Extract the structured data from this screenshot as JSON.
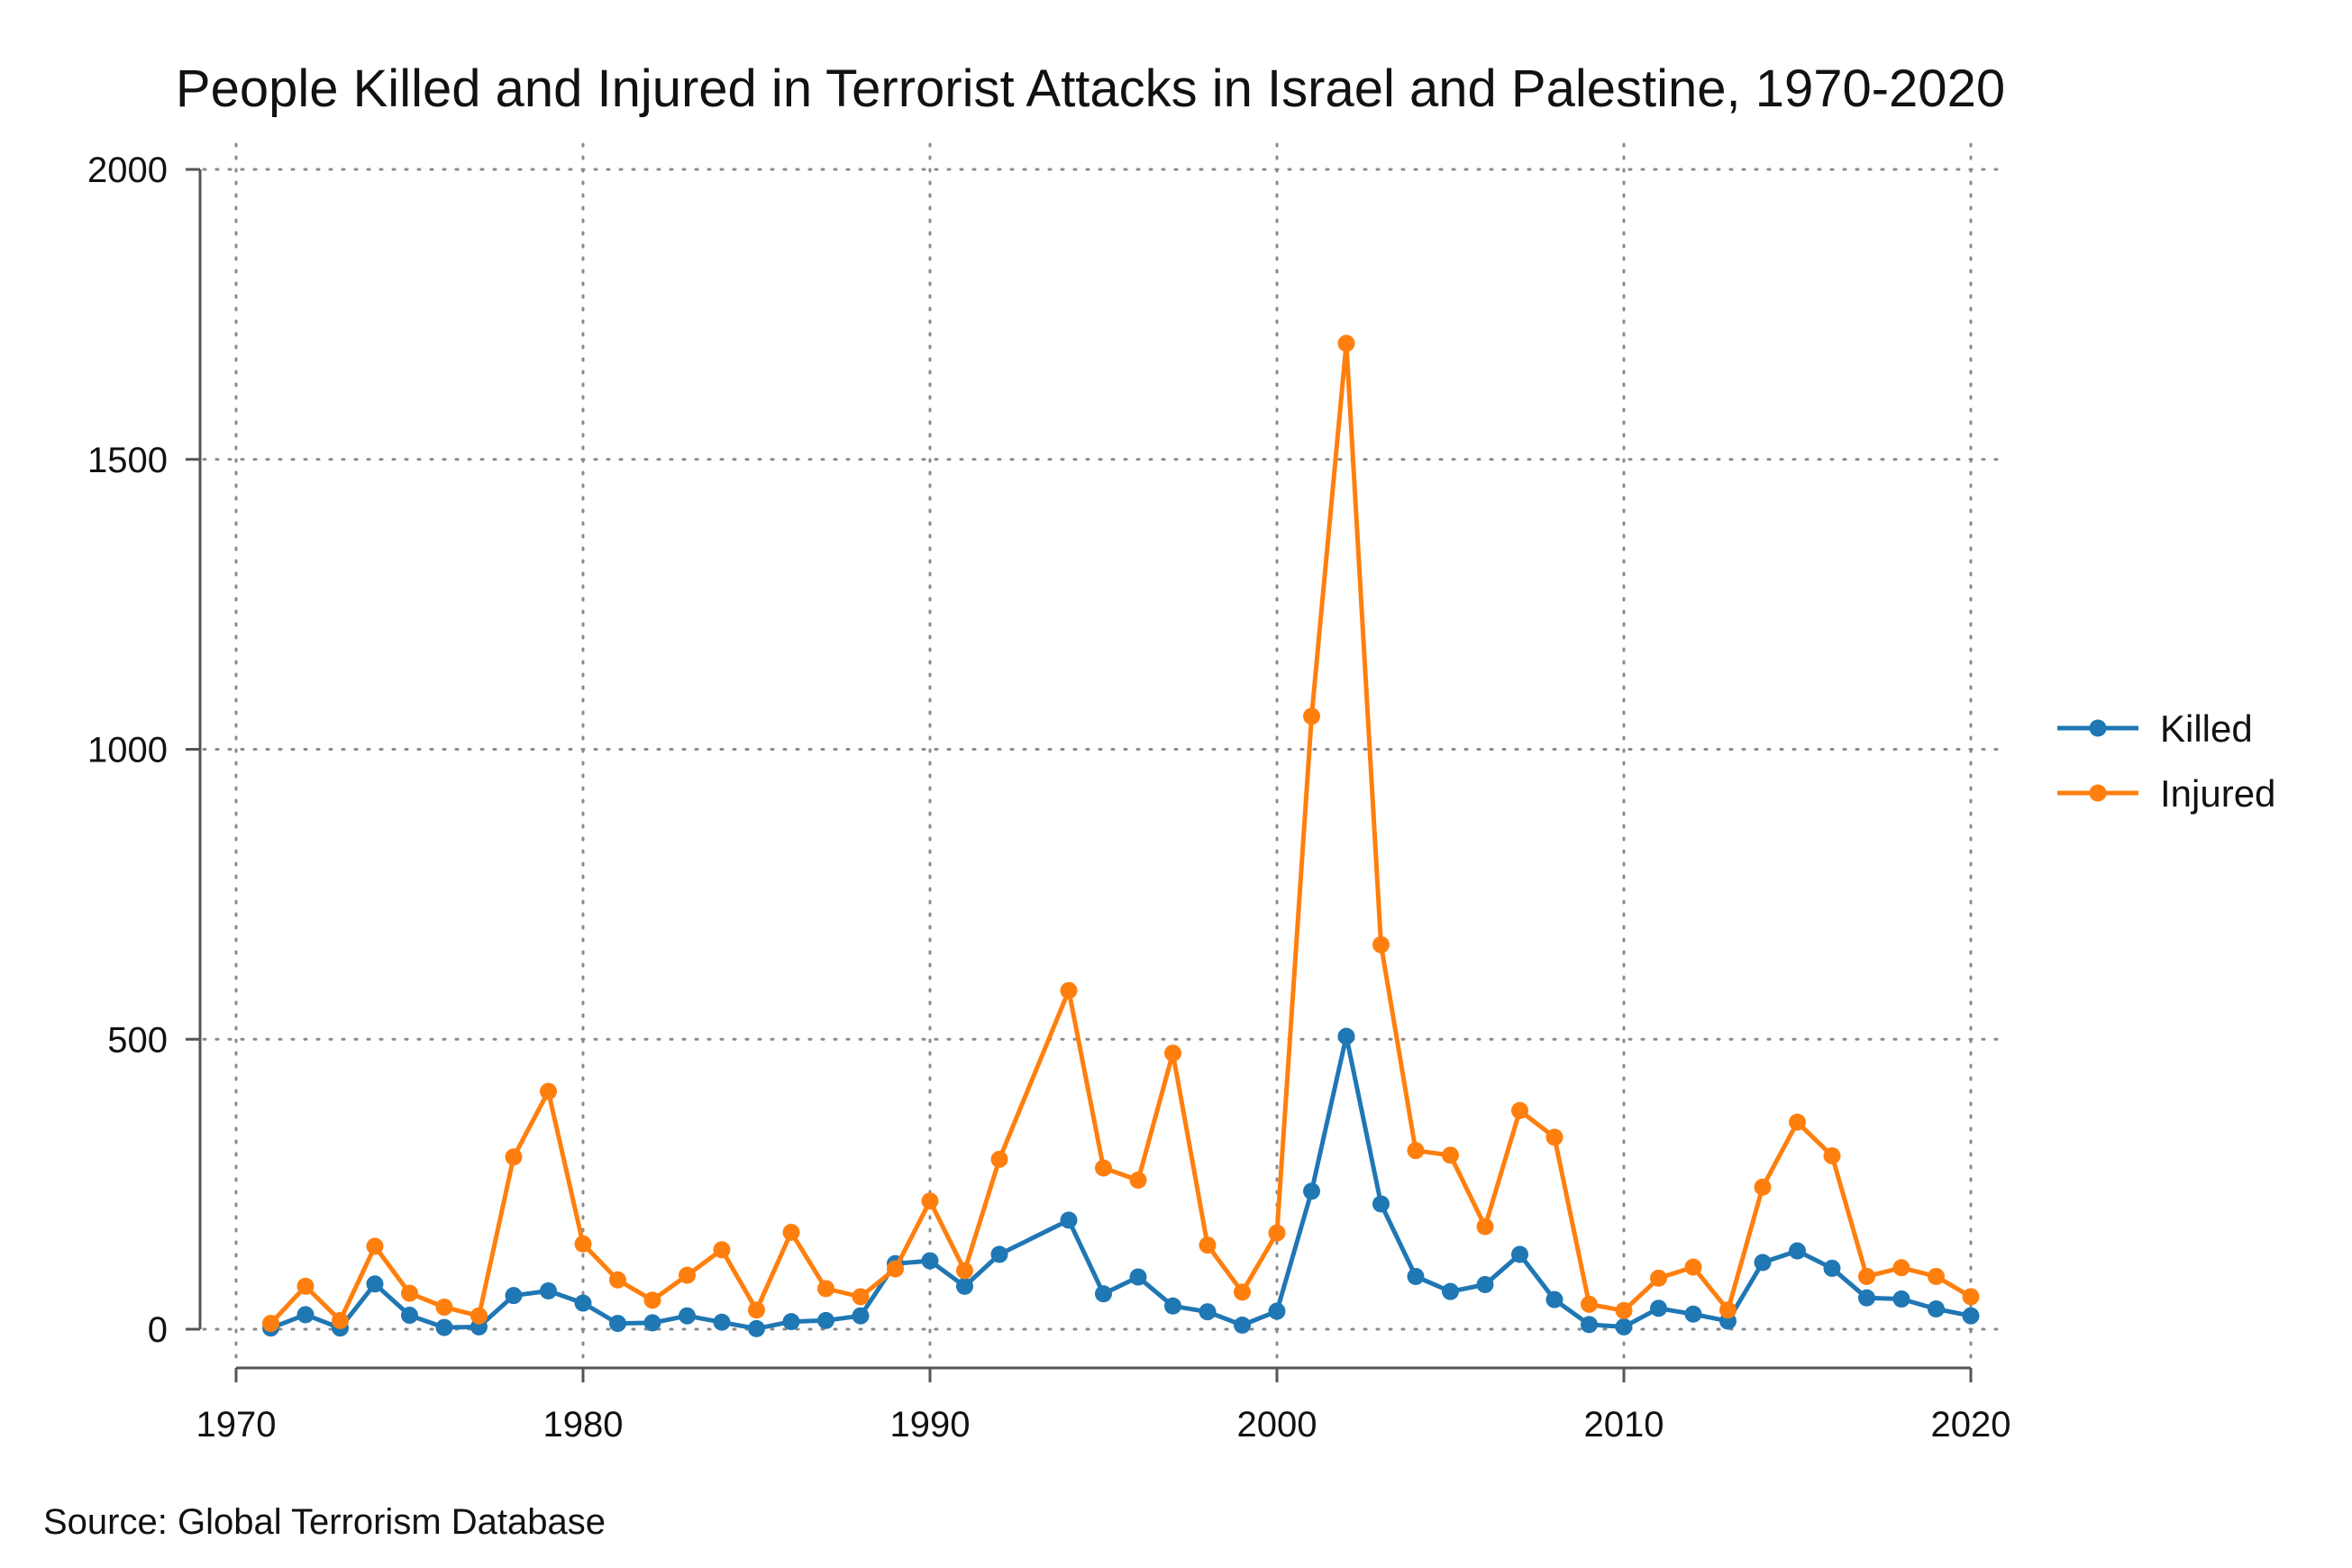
{
  "chart_data": {
    "type": "line",
    "title": "People Killed and Injured in Terrorist Attacks in Israel and Palestine, 1970-2020",
    "xlabel": "",
    "ylabel": "",
    "xlim": [
      1970,
      2020
    ],
    "ylim": [
      0,
      2000
    ],
    "x_ticks": [
      "1970",
      "1980",
      "1990",
      "2000",
      "2010",
      "2020"
    ],
    "y_ticks": [
      "0",
      "500",
      "1000",
      "1500",
      "2000"
    ],
    "grid": true,
    "legend_position": "right",
    "series": [
      {
        "name": "Killed",
        "color": "#1f77b4",
        "x": [
          1971,
          1972,
          1973,
          1974,
          1975,
          1976,
          1977,
          1978,
          1979,
          1980,
          1981,
          1982,
          1983,
          1984,
          1985,
          1986,
          1987,
          1988,
          1989,
          1990,
          1991,
          1992,
          1994,
          1995,
          1996,
          1997,
          1998,
          1999,
          2000,
          2001,
          2002,
          2003,
          2004,
          2005,
          2006,
          2007,
          2008,
          2009,
          2010,
          2011,
          2012,
          2013,
          2014,
          2015,
          2016,
          2017,
          2018,
          2019,
          2020
        ],
        "y": [
          2,
          25,
          2,
          78,
          24,
          3,
          4,
          58,
          66,
          45,
          10,
          11,
          23,
          12,
          1,
          13,
          15,
          23,
          113,
          118,
          74,
          129,
          188,
          61,
          90,
          40,
          30,
          7,
          31,
          238,
          505,
          216,
          91,
          65,
          77,
          129,
          51,
          8,
          4,
          36,
          26,
          14,
          115,
          135,
          105,
          54,
          52,
          35,
          23
        ]
      },
      {
        "name": "Injured",
        "color": "#ff7f0e",
        "x": [
          1971,
          1972,
          1973,
          1974,
          1975,
          1976,
          1977,
          1978,
          1979,
          1980,
          1981,
          1982,
          1983,
          1984,
          1985,
          1986,
          1987,
          1988,
          1989,
          1990,
          1991,
          1992,
          1994,
          1995,
          1996,
          1997,
          1998,
          1999,
          2000,
          2001,
          2002,
          2003,
          2004,
          2005,
          2006,
          2007,
          2008,
          2009,
          2010,
          2011,
          2012,
          2013,
          2014,
          2015,
          2016,
          2017,
          2018,
          2019,
          2020
        ],
        "y": [
          10,
          74,
          15,
          143,
          62,
          38,
          23,
          297,
          410,
          147,
          85,
          50,
          93,
          137,
          33,
          167,
          70,
          56,
          104,
          221,
          101,
          293,
          584,
          278,
          257,
          476,
          145,
          64,
          166,
          1057,
          1700,
          663,
          308,
          300,
          177,
          377,
          331,
          43,
          32,
          88,
          107,
          33,
          245,
          357,
          299,
          91,
          106,
          91,
          56
        ]
      }
    ]
  },
  "source_text": "Source: Global Terrorism Database"
}
